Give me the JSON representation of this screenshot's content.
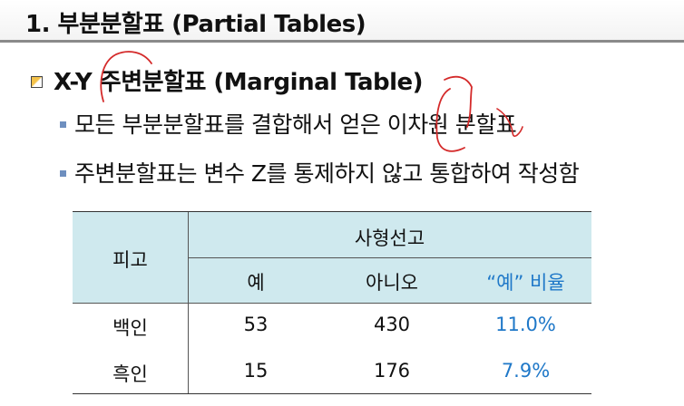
{
  "slide": {
    "title": "1. 부분분할표 (Partial Tables)",
    "bullet_main": "X-Y 주변분할표 (Marginal Table)",
    "sub_bullets": [
      "모든 부분분할표를 결합해서 얻은 이차원 분할표",
      "주변분할표는 변수 Z를 통제하지 않고 통합하여 작성함"
    ]
  },
  "table": {
    "row_header": "피고",
    "group_header": "사형선고",
    "columns": [
      "예",
      "아니오",
      "“예” 비율"
    ],
    "rows": [
      {
        "label": "백인",
        "yes": "53",
        "no": "430",
        "ratio": "11.0%"
      },
      {
        "label": "흑인",
        "yes": "15",
        "no": "176",
        "ratio": "7.9%"
      }
    ]
  },
  "colors": {
    "header_bg": "#cfe9ee",
    "ratio_text": "#1f78c8",
    "annotation_ink": "#d42a2a"
  }
}
